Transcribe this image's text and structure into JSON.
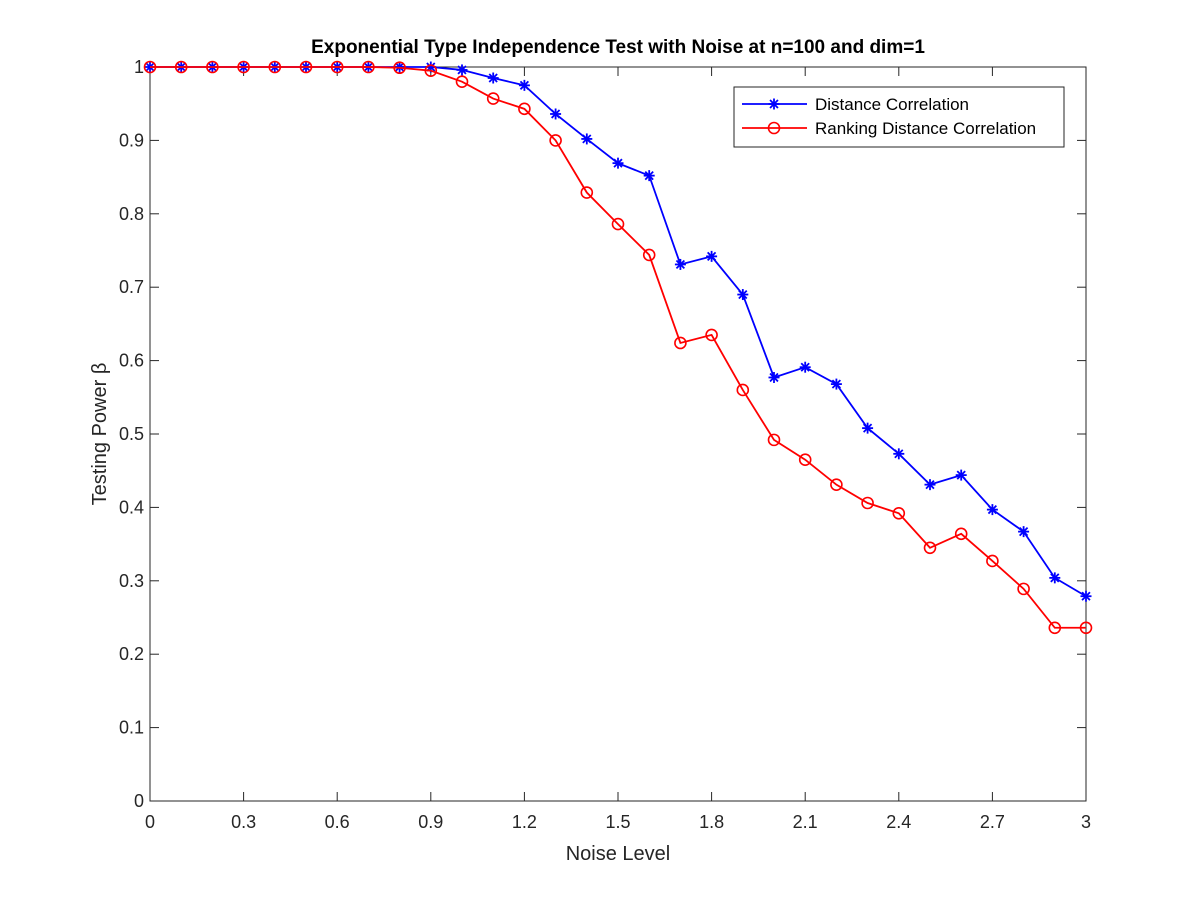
{
  "chart_data": {
    "type": "line",
    "title": "Exponential Type Independence Test with Noise at n=100 and dim=1",
    "xlabel": "Noise Level",
    "ylabel": "Testing Power β",
    "xlim": [
      0,
      3
    ],
    "ylim": [
      0,
      1
    ],
    "xticks": [
      0,
      0.3,
      0.6,
      0.9,
      1.2,
      1.5,
      1.8,
      2.1,
      2.4,
      2.7,
      3
    ],
    "xtick_labels": [
      "0",
      "0.3",
      "0.6",
      "0.9",
      "1.2",
      "1.5",
      "1.8",
      "2.1",
      "2.4",
      "2.7",
      "3"
    ],
    "yticks": [
      0,
      0.1,
      0.2,
      0.3,
      0.4,
      0.5,
      0.6,
      0.7,
      0.8,
      0.9,
      1
    ],
    "ytick_labels": [
      "0",
      "0.1",
      "0.2",
      "0.3",
      "0.4",
      "0.5",
      "0.6",
      "0.7",
      "0.8",
      "0.9",
      "1"
    ],
    "grid": false,
    "legend_position": "top-right",
    "x": [
      0,
      0.1,
      0.2,
      0.3,
      0.4,
      0.5,
      0.6,
      0.7,
      0.8,
      0.9,
      1.0,
      1.1,
      1.2,
      1.3,
      1.4,
      1.5,
      1.6,
      1.7,
      1.8,
      1.9,
      2.0,
      2.1,
      2.2,
      2.3,
      2.4,
      2.5,
      2.6,
      2.7,
      2.8,
      2.9,
      3.0
    ],
    "series": [
      {
        "name": "Distance Correlation",
        "color": "#0000ff",
        "marker": "asterisk",
        "values": [
          1.0,
          1.0,
          1.0,
          1.0,
          1.0,
          1.0,
          1.0,
          1.0,
          1.0,
          1.0,
          0.996,
          0.985,
          0.975,
          0.936,
          0.902,
          0.869,
          0.852,
          0.731,
          0.742,
          0.69,
          0.577,
          0.591,
          0.568,
          0.508,
          0.473,
          0.431,
          0.444,
          0.397,
          0.367,
          0.304,
          0.279
        ]
      },
      {
        "name": "Ranking Distance Correlation",
        "color": "#ff0000",
        "marker": "circle",
        "values": [
          1.0,
          1.0,
          1.0,
          1.0,
          1.0,
          1.0,
          1.0,
          1.0,
          0.999,
          0.995,
          0.98,
          0.957,
          0.943,
          0.9,
          0.829,
          0.786,
          0.744,
          0.624,
          0.635,
          0.56,
          0.492,
          0.465,
          0.431,
          0.406,
          0.392,
          0.345,
          0.364,
          0.327,
          0.289,
          0.236,
          0.236
        ]
      }
    ]
  }
}
